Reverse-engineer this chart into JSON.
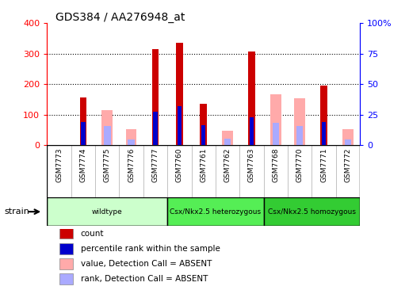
{
  "title": "GDS384 / AA276948_at",
  "samples": [
    "GSM7773",
    "GSM7774",
    "GSM7775",
    "GSM7776",
    "GSM7777",
    "GSM7760",
    "GSM7761",
    "GSM7762",
    "GSM7763",
    "GSM7768",
    "GSM7770",
    "GSM7771",
    "GSM7772"
  ],
  "count_values": [
    0,
    157,
    0,
    0,
    315,
    336,
    135,
    0,
    308,
    0,
    0,
    194,
    0
  ],
  "percentile_values": [
    0,
    75,
    0,
    0,
    110,
    128,
    65,
    0,
    92,
    0,
    0,
    76,
    0
  ],
  "absent_value_values": [
    0,
    0,
    115,
    52,
    0,
    0,
    0,
    46,
    0,
    166,
    153,
    0,
    52
  ],
  "absent_rank_values": [
    0,
    0,
    62,
    18,
    0,
    0,
    0,
    22,
    0,
    74,
    62,
    0,
    18
  ],
  "groups": [
    {
      "label": "wildtype",
      "start": 0,
      "end": 5,
      "color": "#ccffcc"
    },
    {
      "label": "Csx/Nkx2.5 heterozygous",
      "start": 5,
      "end": 9,
      "color": "#55ee55"
    },
    {
      "label": "Csx/Nkx2.5 homozygous",
      "start": 9,
      "end": 13,
      "color": "#33cc33"
    }
  ],
  "count_color": "#cc0000",
  "percentile_color": "#0000cc",
  "absent_value_color": "#ffaaaa",
  "absent_rank_color": "#aaaaff",
  "ylim_left": [
    0,
    400
  ],
  "ylim_right": [
    0,
    100
  ],
  "bg_color": "#ffffff",
  "plot_bg": "#ffffff",
  "tick_area_bg": "#d0d0d0",
  "legend_items": [
    "count",
    "percentile rank within the sample",
    "value, Detection Call = ABSENT",
    "rank, Detection Call = ABSENT"
  ],
  "legend_colors": [
    "#cc0000",
    "#0000cc",
    "#ffaaaa",
    "#aaaaff"
  ]
}
